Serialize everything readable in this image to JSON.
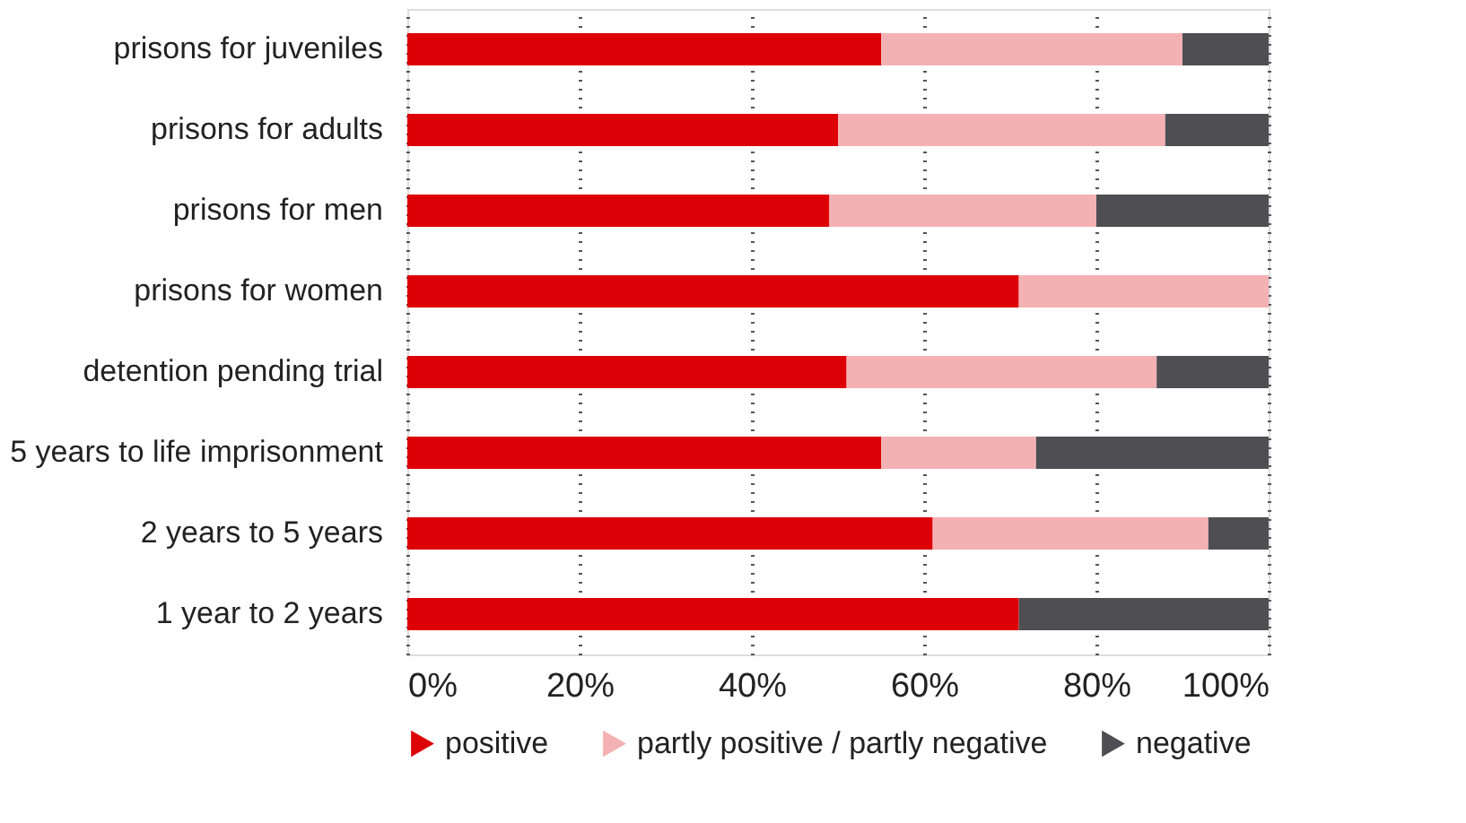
{
  "chart_data": {
    "type": "bar",
    "orientation": "horizontal",
    "stacked": true,
    "categories": [
      "prisons for juveniles",
      "prisons for adults",
      "prisons for men",
      "prisons for women",
      "detention pending trial",
      "5 years to life imprisonment",
      "2 years to 5 years",
      "1 year to 2 years"
    ],
    "series": [
      {
        "name": "positive",
        "color": "#dd0007",
        "values": [
          55,
          50,
          49,
          71,
          51,
          55,
          61,
          71
        ]
      },
      {
        "name": "partly positive / partly negative",
        "color": "#f4b1b3",
        "values": [
          35,
          38,
          31,
          29,
          36,
          18,
          32,
          null
        ]
      },
      {
        "name": "negative",
        "color": "#4f4e53",
        "values": [
          10,
          12,
          20,
          null,
          13,
          27,
          7,
          29
        ]
      }
    ],
    "xlim": [
      0,
      100
    ],
    "xticks": [
      {
        "value": 0,
        "label": "0%"
      },
      {
        "value": 20,
        "label": "20%"
      },
      {
        "value": 40,
        "label": "40%"
      },
      {
        "value": 60,
        "label": "60%"
      },
      {
        "value": 80,
        "label": "80%"
      },
      {
        "value": 100,
        "label": "100%"
      }
    ],
    "grid": "x",
    "legend": "bottom"
  }
}
